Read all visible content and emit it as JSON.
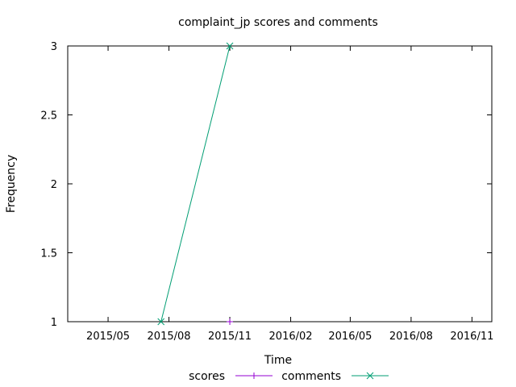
{
  "chart_data": {
    "type": "line",
    "title": "complaint_jp scores and comments",
    "xlabel": "Time",
    "ylabel": "Frequency",
    "xlim": [
      "2015-03-01",
      "2016-12-01"
    ],
    "ylim": [
      1,
      3
    ],
    "x_ticks": [
      "2015/05",
      "2015/08",
      "2015/11",
      "2016/02",
      "2016/05",
      "2016/08",
      "2016/11"
    ],
    "y_ticks": [
      "1",
      "1.5",
      "2",
      "2.5",
      "3"
    ],
    "grid": false,
    "legend_position": "bottom-center",
    "series": [
      {
        "name": "scores",
        "color": "#9400d3",
        "marker": "plus",
        "x": [
          "2015-11-01"
        ],
        "y": [
          1
        ]
      },
      {
        "name": "comments",
        "color": "#009e73",
        "marker": "cross",
        "x": [
          "2015-07-20",
          "2015-11-01"
        ],
        "y": [
          1,
          3
        ]
      }
    ]
  }
}
